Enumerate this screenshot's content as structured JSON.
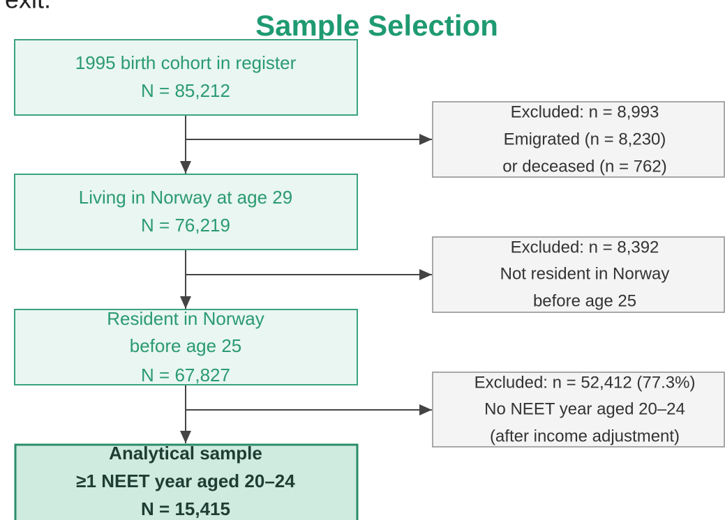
{
  "header": {
    "cut_text": "exit.",
    "title": "Sample Selection"
  },
  "nodes": [
    {
      "lines": [
        "1995 birth cohort in register",
        "N = 85,212"
      ]
    },
    {
      "lines": [
        "Living in Norway at age 29",
        "N = 76,219"
      ]
    },
    {
      "lines": [
        "Resident in Norway",
        "before age 25",
        "N = 67,827"
      ]
    },
    {
      "lines": [
        "Analytical sample",
        "≥1 NEET year aged 20–24",
        "N = 15,415"
      ]
    }
  ],
  "exclusions": [
    {
      "lines": [
        "Excluded: n = 8,993",
        "Emigrated (n = 8,230)",
        "or deceased (n = 762)"
      ]
    },
    {
      "lines": [
        "Excluded: n = 8,392",
        "Not resident in Norway",
        "before age 25"
      ]
    },
    {
      "lines": [
        "Excluded: n = 52,412 (77.3%)",
        "No NEET year aged 20–24",
        "(after income adjustment)"
      ]
    }
  ]
}
